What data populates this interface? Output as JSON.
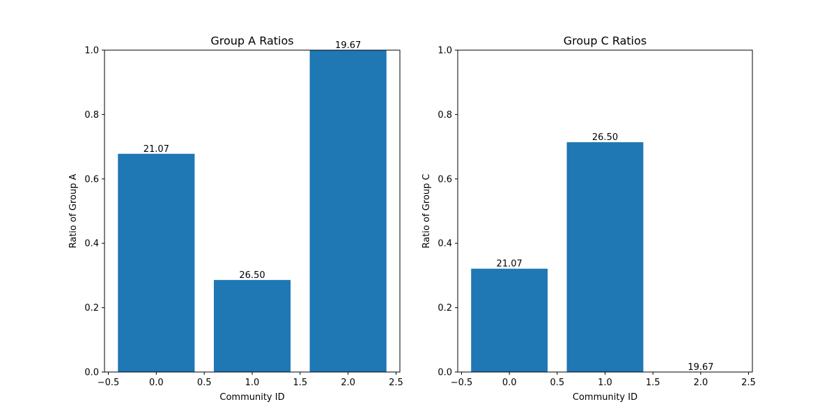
{
  "colors": {
    "bar": "#1f77b4",
    "axis": "#000000",
    "background": "#ffffff"
  },
  "chart_data": [
    {
      "type": "bar",
      "title": "Group A Ratios",
      "xlabel": "Community ID",
      "ylabel": "Ratio of Group A",
      "x": [
        0,
        1,
        2
      ],
      "values": [
        0.678,
        0.286,
        1.0
      ],
      "bar_width": 0.8,
      "bar_labels": [
        "21.07",
        "26.50",
        "19.67"
      ],
      "xlim": [
        -0.54,
        2.54
      ],
      "ylim": [
        0,
        1.0
      ],
      "xticks": [
        -0.5,
        0.0,
        0.5,
        1.0,
        1.5,
        2.0,
        2.5
      ],
      "xtick_labels": [
        "−0.5",
        "0.0",
        "0.5",
        "1.0",
        "1.5",
        "2.0",
        "2.5"
      ],
      "yticks": [
        0.0,
        0.2,
        0.4,
        0.6,
        0.8,
        1.0
      ],
      "ytick_labels": [
        "0.0",
        "0.2",
        "0.4",
        "0.6",
        "0.8",
        "1.0"
      ],
      "grid": false,
      "legend": "none"
    },
    {
      "type": "bar",
      "title": "Group C Ratios",
      "xlabel": "Community ID",
      "ylabel": "Ratio of Group C",
      "x": [
        0,
        1,
        2
      ],
      "values": [
        0.321,
        0.714,
        0.0
      ],
      "bar_width": 0.8,
      "bar_labels": [
        "21.07",
        "26.50",
        "19.67"
      ],
      "xlim": [
        -0.54,
        2.54
      ],
      "ylim": [
        0,
        1.0
      ],
      "xticks": [
        -0.5,
        0.0,
        0.5,
        1.0,
        1.5,
        2.0,
        2.5
      ],
      "xtick_labels": [
        "−0.5",
        "0.0",
        "0.5",
        "1.0",
        "1.5",
        "2.0",
        "2.5"
      ],
      "yticks": [
        0.0,
        0.2,
        0.4,
        0.6,
        0.8,
        1.0
      ],
      "ytick_labels": [
        "0.0",
        "0.2",
        "0.4",
        "0.6",
        "0.8",
        "1.0"
      ],
      "grid": false,
      "legend": "none"
    }
  ]
}
